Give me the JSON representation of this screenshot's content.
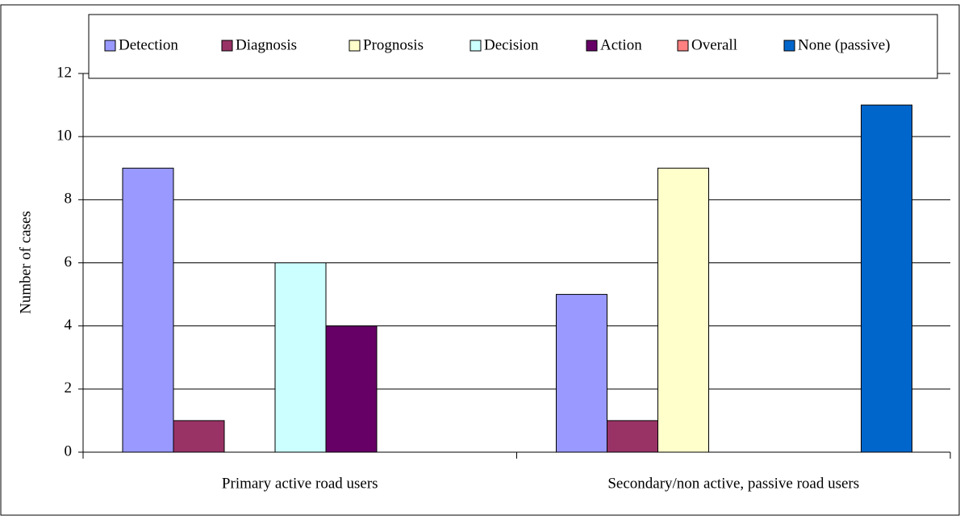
{
  "chart_data": {
    "type": "bar",
    "categories": [
      "Primary active road users",
      "Secondary/non active, passive road users"
    ],
    "series": [
      {
        "name": "Detection",
        "color": "#9999ff",
        "values": [
          9,
          5
        ]
      },
      {
        "name": "Diagnosis",
        "color": "#993366",
        "values": [
          1,
          1
        ]
      },
      {
        "name": "Prognosis",
        "color": "#ffffcc",
        "values": [
          0,
          9
        ]
      },
      {
        "name": "Decision",
        "color": "#ccffff",
        "values": [
          6,
          0
        ]
      },
      {
        "name": "Action",
        "color": "#660066",
        "values": [
          4,
          0
        ]
      },
      {
        "name": "Overall",
        "color": "#ff8080",
        "values": [
          0,
          0
        ]
      },
      {
        "name": "None (passive)",
        "color": "#0066cc",
        "values": [
          0,
          11
        ]
      }
    ],
    "y_label": "Number of cases",
    "ylim": [
      0,
      12
    ],
    "yticks": [
      0,
      2,
      4,
      6,
      8,
      10,
      12
    ],
    "grid": true,
    "legend": "top"
  }
}
